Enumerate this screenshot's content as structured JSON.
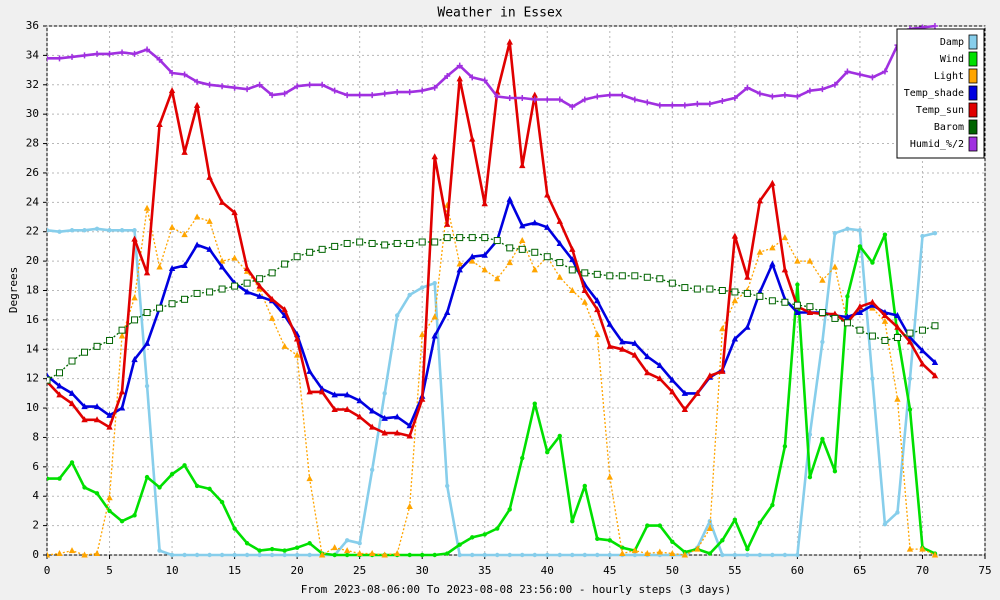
{
  "chart_data": {
    "type": "line",
    "title": "Weather in Essex",
    "x_label": "From 2023-08-06:00 To 2023-08-08 23:56:00 - hourly steps (3 days)",
    "y_label": "Degrees",
    "x": [
      0,
      1,
      2,
      3,
      4,
      5,
      6,
      7,
      8,
      9,
      10,
      11,
      12,
      13,
      14,
      15,
      16,
      17,
      18,
      19,
      20,
      21,
      22,
      23,
      24,
      25,
      26,
      27,
      28,
      29,
      30,
      31,
      32,
      33,
      34,
      35,
      36,
      37,
      38,
      39,
      40,
      41,
      42,
      43,
      44,
      45,
      46,
      47,
      48,
      49,
      50,
      51,
      52,
      53,
      54,
      55,
      56,
      57,
      58,
      59,
      60,
      61,
      62,
      63,
      64,
      65,
      66,
      67,
      68,
      69,
      70,
      71
    ],
    "xlim": [
      0,
      75
    ],
    "xticks": [
      0,
      5,
      10,
      15,
      20,
      25,
      30,
      35,
      40,
      45,
      50,
      55,
      60,
      65,
      70,
      75
    ],
    "ylim": [
      0,
      36
    ],
    "yticks": [
      0,
      2,
      4,
      6,
      8,
      10,
      12,
      14,
      16,
      18,
      20,
      22,
      24,
      26,
      28,
      30,
      32,
      34,
      36
    ],
    "grid": true,
    "legend": "top-right",
    "series": [
      {
        "name": "Damp",
        "color": "#87ceeb",
        "dashed": false,
        "values": [
          22.1,
          22.0,
          22.1,
          22.1,
          22.2,
          22.1,
          22.1,
          22.1,
          11.5,
          0.3,
          0,
          0,
          0,
          0,
          0,
          0,
          0,
          0,
          0,
          0,
          0,
          0,
          0,
          0,
          1.0,
          0.8,
          5.8,
          11.0,
          16.3,
          17.7,
          18.2,
          18.5,
          4.7,
          0,
          0,
          0,
          0,
          0,
          0,
          0,
          0,
          0,
          0,
          0,
          0,
          0,
          0,
          0,
          0,
          0,
          0,
          0,
          0.5,
          2.3,
          0,
          0,
          0,
          0,
          0,
          0,
          0,
          8.2,
          14.5,
          21.9,
          22.2,
          22.1,
          12.0,
          2.1,
          2.9,
          12.0,
          21.7,
          21.9
        ]
      },
      {
        "name": "Wind",
        "color": "#00e000",
        "dashed": false,
        "values": [
          5.2,
          5.2,
          6.3,
          4.6,
          4.2,
          3.0,
          2.3,
          2.7,
          5.3,
          4.6,
          5.5,
          6.1,
          4.7,
          4.5,
          3.6,
          1.8,
          0.8,
          0.3,
          0.4,
          0.3,
          0.5,
          0.8,
          0.1,
          0,
          0,
          0,
          0,
          0,
          0,
          0,
          0,
          0,
          0.1,
          0.7,
          1.2,
          1.4,
          1.8,
          3.1,
          6.6,
          10.3,
          7.0,
          8.1,
          2.3,
          4.7,
          1.1,
          1.0,
          0.5,
          0.3,
          2.0,
          2.0,
          0.9,
          0.2,
          0.4,
          0.1,
          1.0,
          2.4,
          0.4,
          2.2,
          3.4,
          7.4,
          18.4,
          5.3,
          7.9,
          5.7,
          17.6,
          21.0,
          19.9,
          21.8,
          15.0,
          9.9,
          0.5,
          0.1
        ]
      },
      {
        "name": "Light",
        "color": "#ffa500",
        "dashed": true,
        "values": [
          0,
          0.1,
          0.3,
          0,
          0.1,
          3.9,
          14.9,
          17.5,
          23.6,
          19.6,
          22.3,
          21.8,
          23.0,
          22.7,
          20.0,
          20.2,
          19.3,
          18.1,
          16.1,
          14.2,
          13.6,
          5.2,
          0,
          0.5,
          0.3,
          0.1,
          0.1,
          0,
          0.1,
          3.3,
          15.0,
          16.2,
          23.8,
          19.8,
          20.0,
          19.4,
          18.8,
          19.9,
          21.4,
          19.4,
          20.3,
          18.9,
          18.0,
          17.2,
          15.0,
          5.3,
          0.1,
          0.3,
          0.1,
          0.2,
          0.1,
          0,
          0.4,
          1.8,
          15.4,
          17.3,
          18.0,
          20.6,
          20.9,
          21.6,
          20.0,
          20.0,
          18.7,
          19.6,
          15.8,
          16.7,
          16.8,
          15.9,
          10.6,
          0.4,
          0.4,
          0
        ]
      },
      {
        "name": "Temp_shade",
        "color": "#0000e0",
        "dashed": false,
        "values": [
          12.2,
          11.5,
          11.0,
          10.1,
          10.1,
          9.5,
          10.0,
          13.3,
          14.4,
          16.8,
          19.5,
          19.7,
          21.1,
          20.8,
          19.6,
          18.5,
          17.9,
          17.6,
          17.3,
          16.3,
          15.0,
          12.5,
          11.3,
          10.9,
          10.9,
          10.5,
          9.8,
          9.3,
          9.4,
          8.8,
          10.8,
          14.9,
          16.5,
          19.4,
          20.3,
          20.4,
          21.4,
          24.2,
          22.4,
          22.6,
          22.3,
          21.2,
          20.1,
          18.4,
          17.3,
          15.7,
          14.5,
          14.4,
          13.5,
          12.9,
          11.9,
          11.0,
          11.0,
          12.1,
          12.6,
          14.7,
          15.5,
          17.9,
          19.8,
          17.4,
          16.5,
          16.5,
          16.5,
          16.3,
          16.2,
          16.5,
          17.0,
          16.5,
          16.3,
          14.8,
          13.9,
          13.1
        ]
      },
      {
        "name": "Temp_sun",
        "color": "#e00000",
        "dashed": false,
        "values": [
          11.8,
          10.9,
          10.3,
          9.2,
          9.2,
          8.7,
          11.1,
          21.5,
          19.2,
          29.3,
          31.6,
          27.4,
          30.6,
          25.7,
          24.0,
          23.3,
          19.5,
          18.3,
          17.4,
          16.7,
          14.7,
          11.1,
          11.1,
          9.9,
          9.9,
          9.4,
          8.7,
          8.3,
          8.3,
          8.1,
          10.6,
          27.1,
          22.5,
          32.4,
          28.3,
          23.9,
          31.5,
          34.9,
          26.5,
          31.3,
          24.5,
          22.7,
          20.8,
          18.0,
          16.7,
          14.2,
          14.0,
          13.6,
          12.4,
          12.0,
          11.1,
          9.9,
          11.0,
          12.2,
          12.5,
          21.7,
          18.9,
          24.1,
          25.3,
          19.4,
          16.9,
          16.5,
          16.4,
          16.4,
          15.8,
          16.9,
          17.2,
          16.3,
          15.5,
          14.5,
          13.0,
          12.2
        ]
      },
      {
        "name": "Barom",
        "color": "#006400",
        "dashed": true,
        "values": [
          11.9,
          12.4,
          13.2,
          13.8,
          14.2,
          14.6,
          15.3,
          16.0,
          16.5,
          16.8,
          17.1,
          17.4,
          17.8,
          17.9,
          18.1,
          18.3,
          18.5,
          18.8,
          19.2,
          19.8,
          20.3,
          20.6,
          20.8,
          21.0,
          21.2,
          21.3,
          21.2,
          21.1,
          21.2,
          21.2,
          21.3,
          21.3,
          21.6,
          21.6,
          21.6,
          21.6,
          21.4,
          20.9,
          20.8,
          20.6,
          20.3,
          19.9,
          19.4,
          19.2,
          19.1,
          19.0,
          19.0,
          19.0,
          18.9,
          18.8,
          18.5,
          18.2,
          18.1,
          18.1,
          18.0,
          17.9,
          17.8,
          17.6,
          17.3,
          17.2,
          17.0,
          16.9,
          16.5,
          16.1,
          15.8,
          15.3,
          14.9,
          14.6,
          14.8,
          15.1,
          15.3,
          15.6
        ]
      },
      {
        "name": "Humid_%/2",
        "color": "#a030e0",
        "dashed": false,
        "values": [
          33.8,
          33.8,
          33.9,
          34.0,
          34.1,
          34.1,
          34.2,
          34.1,
          34.4,
          33.7,
          32.8,
          32.7,
          32.2,
          32.0,
          31.9,
          31.8,
          31.7,
          32.0,
          31.3,
          31.4,
          31.9,
          32.0,
          32.0,
          31.6,
          31.3,
          31.3,
          31.3,
          31.4,
          31.5,
          31.5,
          31.6,
          31.8,
          32.6,
          33.3,
          32.5,
          32.3,
          31.2,
          31.1,
          31.1,
          31.0,
          31.0,
          31.0,
          30.5,
          31.0,
          31.2,
          31.3,
          31.3,
          31.0,
          30.8,
          30.6,
          30.6,
          30.6,
          30.7,
          30.7,
          30.9,
          31.1,
          31.8,
          31.4,
          31.2,
          31.3,
          31.2,
          31.6,
          31.7,
          32.0,
          32.9,
          32.7,
          32.5,
          32.9,
          34.7,
          35.8,
          35.9,
          36.0
        ]
      }
    ]
  }
}
